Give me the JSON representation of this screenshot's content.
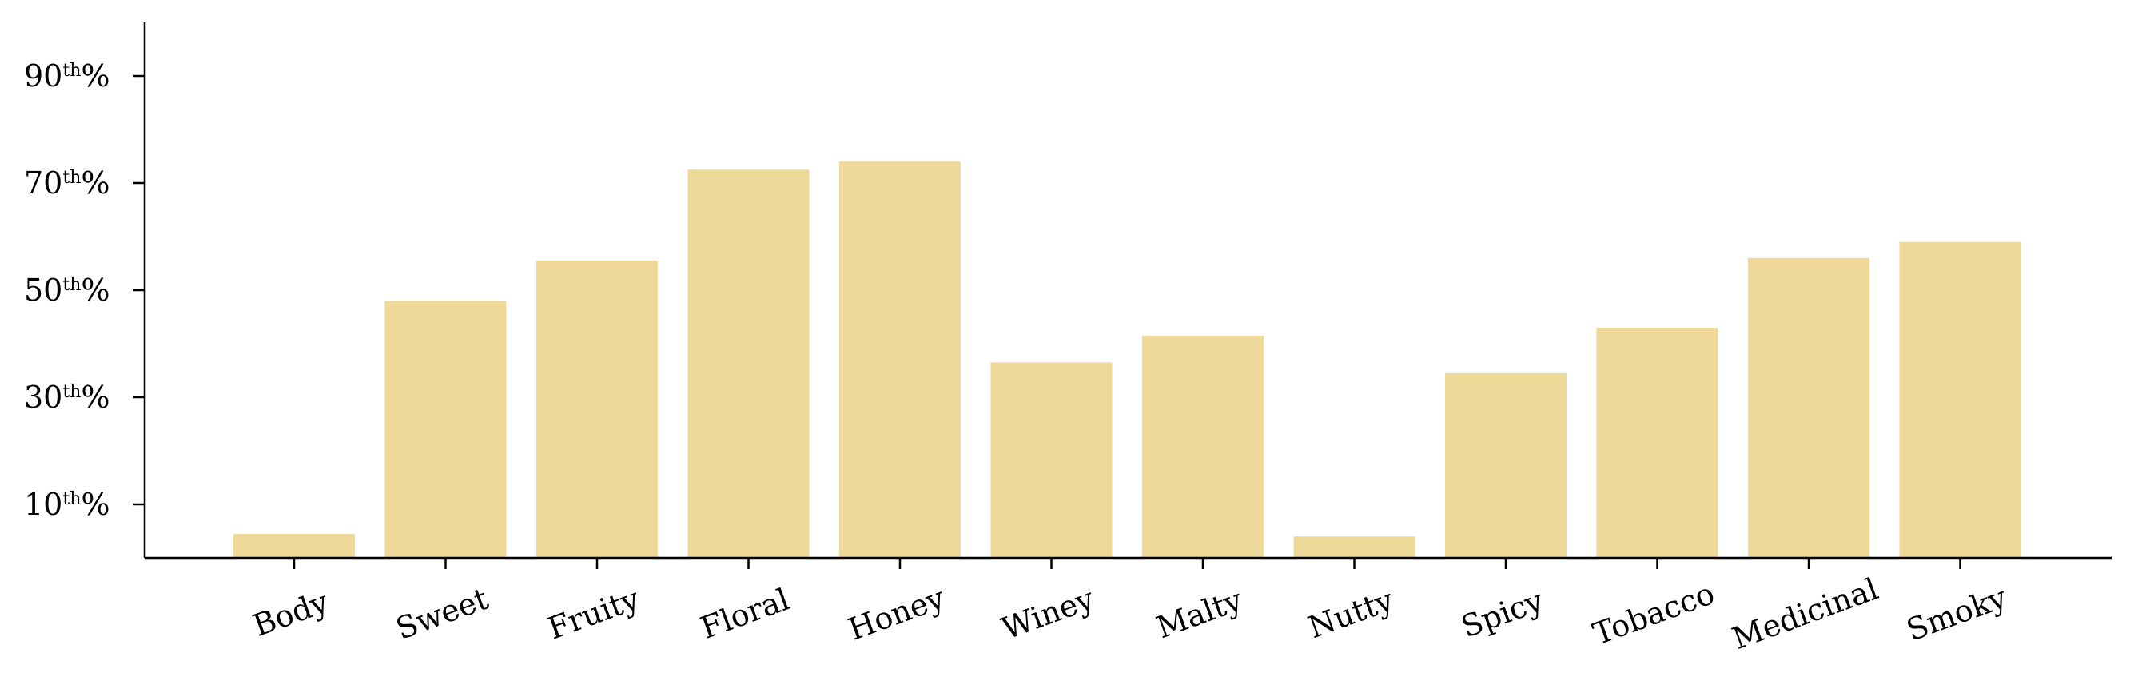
{
  "chart_data": {
    "type": "bar",
    "title": "",
    "xlabel": "",
    "ylabel": "",
    "categories": [
      "Body",
      "Sweet",
      "Fruity",
      "Floral",
      "Honey",
      "Winey",
      "Malty",
      "Nutty",
      "Spicy",
      "Tobacco",
      "Medicinal",
      "Smoky"
    ],
    "values": [
      4.5,
      48,
      55.5,
      72.5,
      74,
      36.5,
      41.5,
      4,
      34.5,
      43,
      56,
      59
    ],
    "ylim": [
      0,
      100
    ],
    "yticks": [
      {
        "value": 10,
        "number": "10",
        "sup": "th",
        "suffix": "%"
      },
      {
        "value": 30,
        "number": "30",
        "sup": "th",
        "suffix": "%"
      },
      {
        "value": 50,
        "number": "50",
        "sup": "th",
        "suffix": "%"
      },
      {
        "value": 70,
        "number": "70",
        "sup": "th",
        "suffix": "%"
      },
      {
        "value": 90,
        "number": "90",
        "sup": "th",
        "suffix": "%"
      }
    ],
    "bar_color": "#EED999",
    "grid": false,
    "legend": "none"
  }
}
